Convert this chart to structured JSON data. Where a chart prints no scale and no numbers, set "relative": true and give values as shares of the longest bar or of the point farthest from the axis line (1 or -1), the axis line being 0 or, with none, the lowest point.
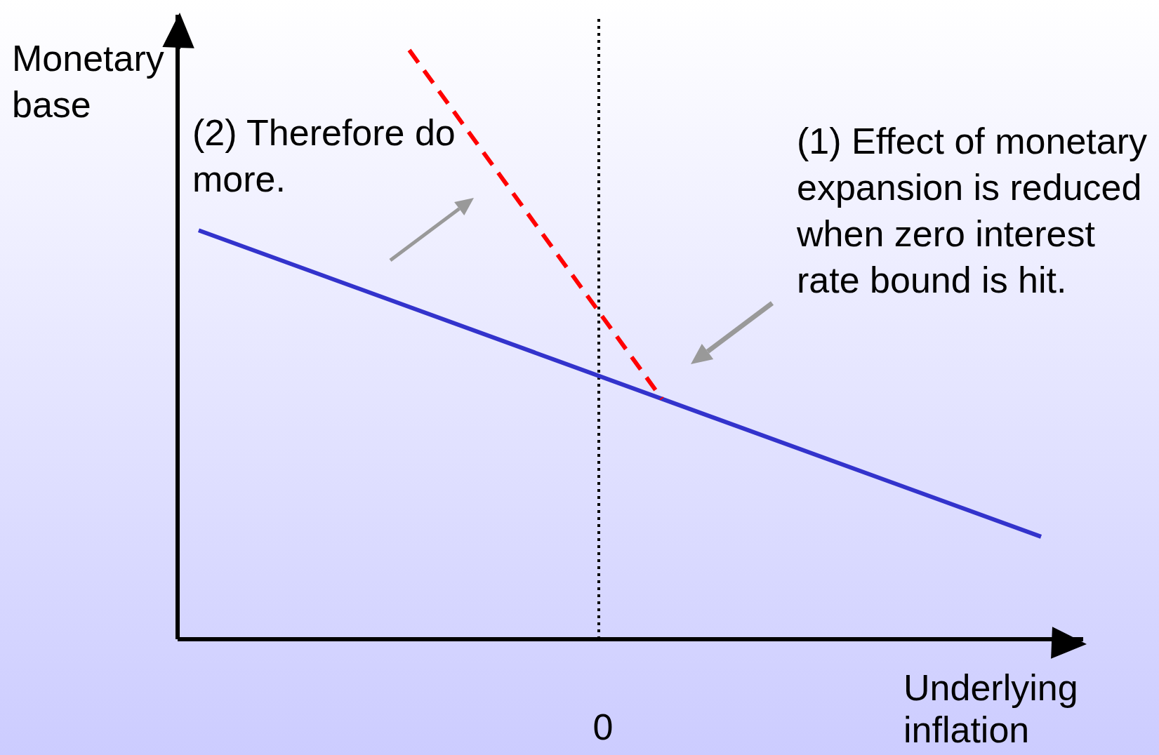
{
  "chart_data": {
    "type": "line",
    "ylabel": "Monetary base",
    "xlabel": "Underlying inflation",
    "relative": true,
    "grid": false,
    "legend": false,
    "marker": "none",
    "categories": [
      null,
      null,
      null,
      null,
      null,
      null,
      null,
      null,
      null,
      null,
      null,
      null,
      null,
      null,
      null,
      null,
      null,
      null,
      null,
      null,
      null,
      null,
      null,
      null,
      null,
      null,
      null,
      null,
      null,
      null,
      null,
      null,
      null,
      null,
      null,
      null,
      null,
      null,
      null,
      null,
      null,
      null,
      null,
      null
    ],
    "series": [
      {
        "color": "#3333cc",
        "values": [
          null,
          0.694,
          null,
          null,
          null,
          null,
          null,
          null,
          null,
          null,
          null,
          null,
          null,
          null,
          null,
          null,
          null,
          null,
          null,
          null,
          null,
          null,
          null,
          null,
          null,
          null,
          null,
          null,
          null,
          null,
          null,
          null,
          null,
          null,
          null,
          null,
          null,
          null,
          null,
          null,
          null,
          0.174,
          null,
          null
        ]
      },
      {
        "color": "#ff0000",
        "line_style": "dashed",
        "values": [
          null,
          null,
          null,
          null,
          null,
          null,
          null,
          null,
          null,
          null,
          null,
          1,
          null,
          null,
          null,
          null,
          null,
          null,
          null,
          null,
          null,
          null,
          null,
          0.408,
          null,
          null,
          null,
          null,
          null,
          null,
          null,
          null,
          null,
          null,
          null,
          null,
          null,
          null,
          null,
          null,
          null,
          null,
          null,
          null
        ]
      }
    ],
    "annotations": [
      "(2) Therefore do more.",
      "(1) Effect of monetary expansion is reduced when zero interest rate bound is hit.",
      "0"
    ]
  }
}
